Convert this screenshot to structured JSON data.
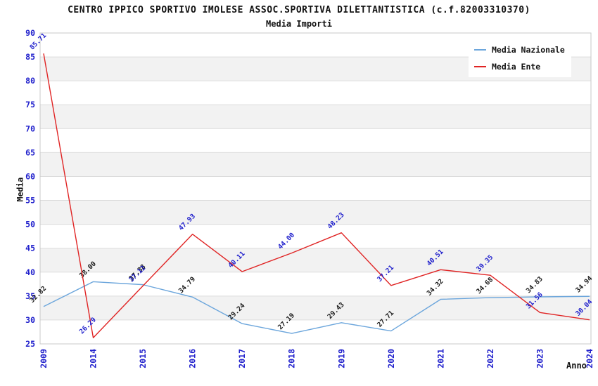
{
  "chart_data": {
    "type": "line",
    "title": "CENTRO IPPICO SPORTIVO IMOLESE ASSOC.SPORTIVA DILETTANTISTICA (c.f.82003310370)",
    "subtitle": "Media Importi",
    "xlabel": "Anno",
    "ylabel": "Media",
    "x": [
      "2009",
      "2014",
      "2015",
      "2016",
      "2017",
      "2018",
      "2019",
      "2020",
      "2021",
      "2022",
      "2023",
      "2024"
    ],
    "ylim": [
      25,
      90
    ],
    "y_tick_step": 5,
    "grid": true,
    "legend_position": "top-right",
    "series": [
      {
        "name": "Media Nazionale",
        "color": "#6CA6DC",
        "label_color": "#1A1A1A",
        "values": [
          32.82,
          38.0,
          37.38,
          34.79,
          29.24,
          27.19,
          29.43,
          27.71,
          34.32,
          34.68,
          34.83,
          34.94
        ]
      },
      {
        "name": "Media Ente",
        "color": "#E02424",
        "label_color": "#2020CC",
        "values": [
          85.71,
          26.29,
          37.12,
          47.93,
          40.11,
          44.0,
          48.23,
          37.21,
          40.51,
          39.35,
          31.56,
          30.04
        ]
      }
    ],
    "styles": {
      "axis_tick_color": "#2020CC",
      "band_fill": "#F2F2F2",
      "grid_color": "#DCDCDC",
      "plot_border_color": "#C8C8C8",
      "title_color": "#111111"
    }
  }
}
